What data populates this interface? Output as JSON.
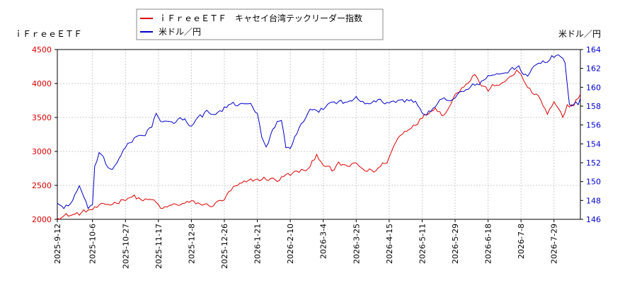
{
  "chart_data": {
    "type": "line",
    "left_axis_label": "ｉＦｒｅｅＥＴＦ",
    "right_axis_label": "米ドル／円",
    "legend": [
      {
        "name": "ｉＦｒｅｅＥＴＦ　キャセイ台湾テックリーダー指数",
        "color": "#dd0000"
      },
      {
        "name": "米ドル／円",
        "color": "#0000cc"
      }
    ],
    "legend_position": "top-center",
    "grid": true,
    "left_axis": {
      "min": 2000,
      "max": 4500,
      "ticks": [
        "4500",
        "4000",
        "3500",
        "3000",
        "2500",
        "2000"
      ],
      "color": "#dd0000"
    },
    "right_axis": {
      "min": 146,
      "max": 164,
      "ticks": [
        "164",
        "162",
        "160",
        "158",
        "156",
        "154",
        "152",
        "150",
        "148",
        "146"
      ],
      "color": "#0000cc"
    },
    "x_ticks": [
      "2025-9-12",
      "2025-10-6",
      "2025-10-27",
      "2025-11-17",
      "2025-12-8",
      "2025-12-26",
      "2026-1-21",
      "2026-2-10",
      "2026-3-4",
      "2026-3-25",
      "2026-4-15",
      "2026-5-11",
      "2026-5-29",
      "2026-6-18",
      "2026-7-8",
      "2026-7-29"
    ],
    "x_tick_positions": [
      0,
      16,
      31,
      46,
      61,
      76,
      91,
      106,
      121,
      136,
      151,
      166,
      181,
      196,
      211,
      226
    ],
    "n_points": 239,
    "series": [
      {
        "name": "ｉＦｒｅｅＥＴＦ　キャセイ台湾テックリーダー指数",
        "color": "#dd0000",
        "axis": "left",
        "keypoints": [
          [
            0,
            2050
          ],
          [
            5,
            2060
          ],
          [
            10,
            2080
          ],
          [
            15,
            2140
          ],
          [
            20,
            2180
          ],
          [
            25,
            2230
          ],
          [
            30,
            2300
          ],
          [
            33,
            2350
          ],
          [
            36,
            2320
          ],
          [
            40,
            2280
          ],
          [
            45,
            2260
          ],
          [
            47,
            2130
          ],
          [
            50,
            2180
          ],
          [
            55,
            2220
          ],
          [
            60,
            2240
          ],
          [
            65,
            2230
          ],
          [
            68,
            2200
          ],
          [
            72,
            2230
          ],
          [
            76,
            2300
          ],
          [
            80,
            2450
          ],
          [
            85,
            2520
          ],
          [
            90,
            2580
          ],
          [
            95,
            2600
          ],
          [
            100,
            2580
          ],
          [
            103,
            2630
          ],
          [
            106,
            2660
          ],
          [
            110,
            2700
          ],
          [
            115,
            2750
          ],
          [
            118,
            2950
          ],
          [
            122,
            2800
          ],
          [
            125,
            2700
          ],
          [
            128,
            2800
          ],
          [
            132,
            2780
          ],
          [
            136,
            2800
          ],
          [
            140,
            2720
          ],
          [
            145,
            2720
          ],
          [
            150,
            2860
          ],
          [
            155,
            3200
          ],
          [
            160,
            3350
          ],
          [
            165,
            3480
          ],
          [
            170,
            3600
          ],
          [
            172,
            3680
          ],
          [
            175,
            3550
          ],
          [
            178,
            3650
          ],
          [
            182,
            3880
          ],
          [
            187,
            4050
          ],
          [
            190,
            4150
          ],
          [
            193,
            3980
          ],
          [
            196,
            3900
          ],
          [
            200,
            4000
          ],
          [
            203,
            3980
          ],
          [
            206,
            4100
          ],
          [
            209,
            4200
          ],
          [
            212,
            4050
          ],
          [
            215,
            3900
          ],
          [
            220,
            3750
          ],
          [
            223,
            3550
          ],
          [
            226,
            3700
          ],
          [
            229,
            3550
          ],
          [
            230,
            3450
          ],
          [
            232,
            3650
          ],
          [
            235,
            3700
          ],
          [
            238,
            3850
          ]
        ],
        "noise_amplitude": 45
      },
      {
        "name": "米ドル／円",
        "color": "#0000cc",
        "axis": "right",
        "keypoints": [
          [
            0,
            147.8
          ],
          [
            3,
            147.2
          ],
          [
            6,
            147.8
          ],
          [
            8,
            148.5
          ],
          [
            10,
            149.5
          ],
          [
            12,
            148.0
          ],
          [
            14,
            147.2
          ],
          [
            16,
            147.6
          ],
          [
            17,
            151.5
          ],
          [
            19,
            152.8
          ],
          [
            22,
            151.8
          ],
          [
            25,
            151.2
          ],
          [
            28,
            152.6
          ],
          [
            31,
            153.5
          ],
          [
            34,
            154.2
          ],
          [
            37,
            154.8
          ],
          [
            40,
            155.2
          ],
          [
            43,
            156.0
          ],
          [
            45,
            157.2
          ],
          [
            48,
            156.2
          ],
          [
            52,
            156.0
          ],
          [
            56,
            156.8
          ],
          [
            60,
            156.2
          ],
          [
            64,
            156.6
          ],
          [
            68,
            157.3
          ],
          [
            72,
            157.0
          ],
          [
            76,
            157.8
          ],
          [
            80,
            158.0
          ],
          [
            85,
            158.4
          ],
          [
            88,
            158.6
          ],
          [
            91,
            157.2
          ],
          [
            93,
            154.5
          ],
          [
            95,
            153.6
          ],
          [
            97,
            155.0
          ],
          [
            100,
            156.2
          ],
          [
            102,
            156.8
          ],
          [
            104,
            153.8
          ],
          [
            106,
            153.2
          ],
          [
            108,
            154.8
          ],
          [
            111,
            155.9
          ],
          [
            115,
            157.2
          ],
          [
            120,
            157.6
          ],
          [
            124,
            158.3
          ],
          [
            128,
            158.6
          ],
          [
            132,
            158.2
          ],
          [
            136,
            159.0
          ],
          [
            140,
            158.6
          ],
          [
            144,
            158.8
          ],
          [
            148,
            158.4
          ],
          [
            152,
            158.6
          ],
          [
            156,
            158.4
          ],
          [
            160,
            158.6
          ],
          [
            163,
            158.4
          ],
          [
            166,
            157.4
          ],
          [
            170,
            157.4
          ],
          [
            174,
            158.4
          ],
          [
            178,
            158.8
          ],
          [
            182,
            159.2
          ],
          [
            186,
            159.6
          ],
          [
            190,
            160.2
          ],
          [
            194,
            160.8
          ],
          [
            198,
            161.2
          ],
          [
            202,
            161.5
          ],
          [
            206,
            161.8
          ],
          [
            210,
            162.0
          ],
          [
            214,
            161.2
          ],
          [
            218,
            162.3
          ],
          [
            222,
            162.6
          ],
          [
            226,
            163.3
          ],
          [
            229,
            163.5
          ],
          [
            231,
            162.6
          ],
          [
            233,
            158.4
          ],
          [
            235,
            158.2
          ],
          [
            237,
            158.2
          ],
          [
            238,
            158.6
          ]
        ],
        "noise_amplitude": 0.35
      }
    ]
  }
}
